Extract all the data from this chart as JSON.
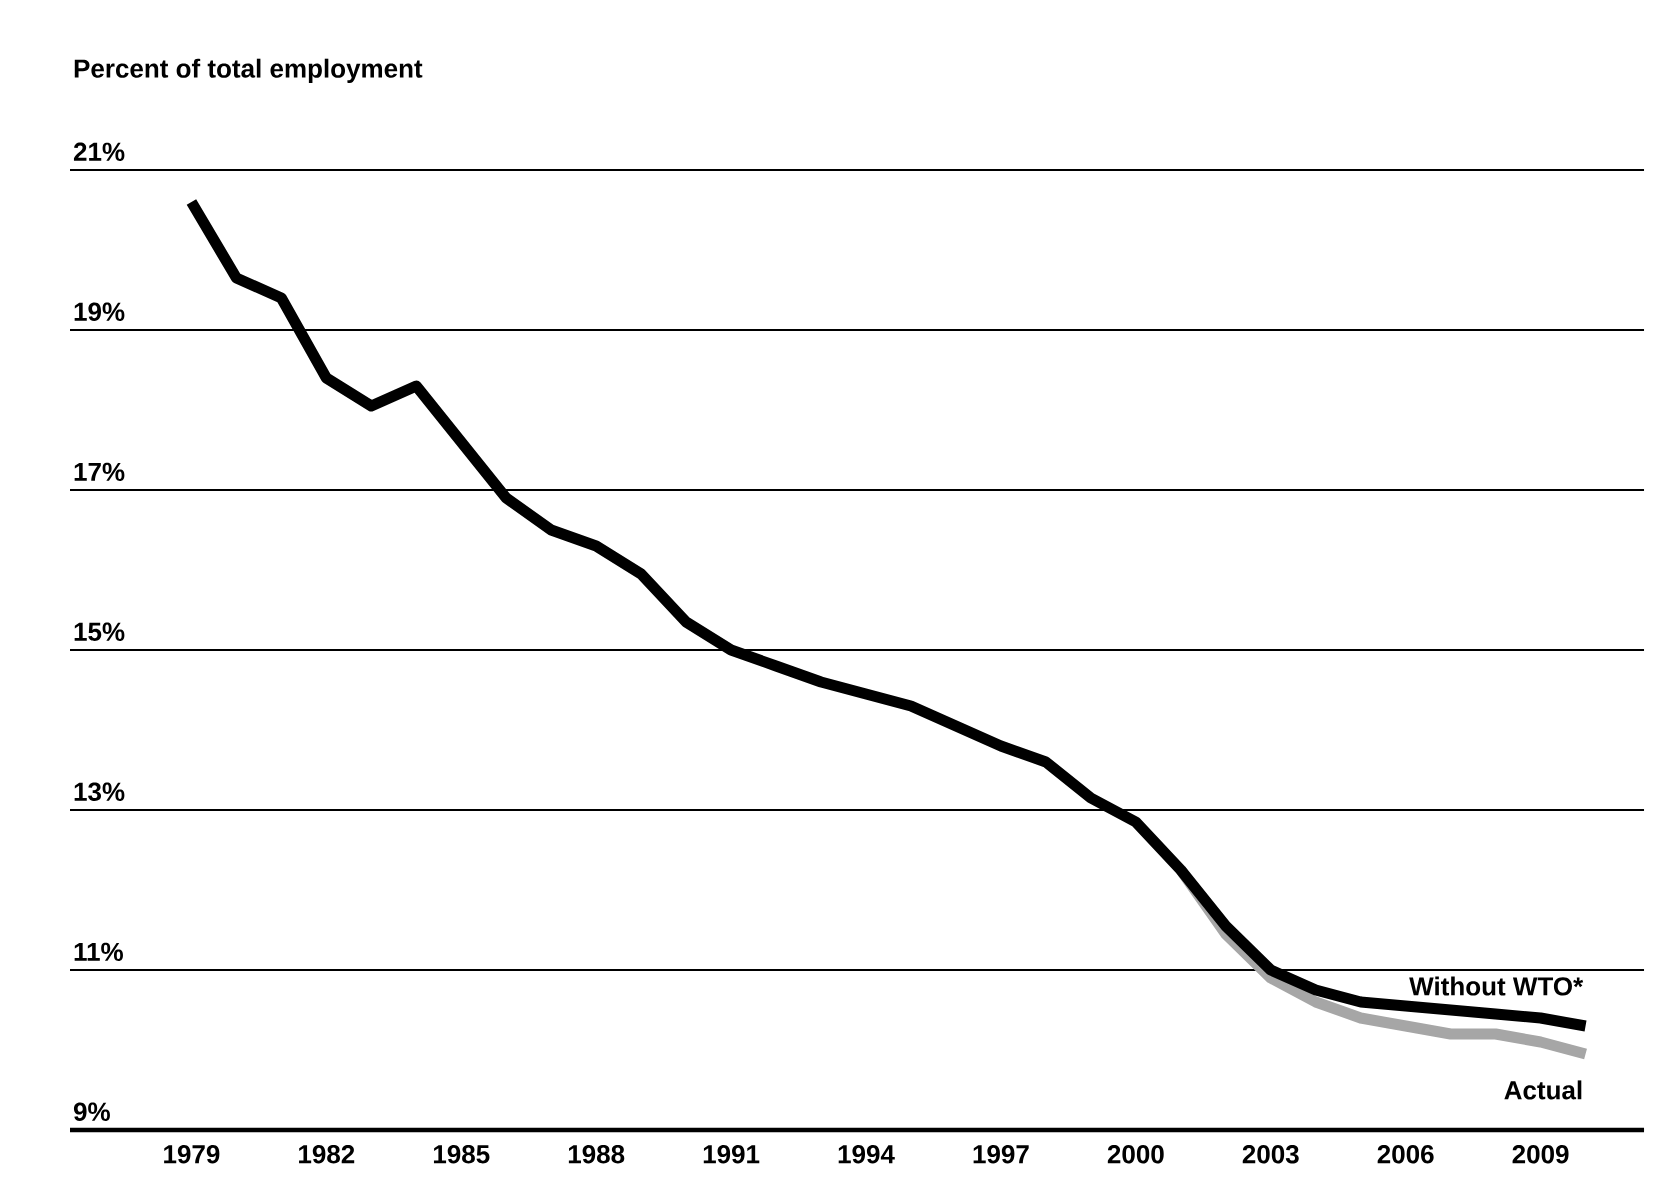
{
  "chart_data": {
    "type": "line",
    "ylabel": "Percent of total employment",
    "x": [
      1979,
      1980,
      1981,
      1982,
      1983,
      1984,
      1985,
      1986,
      1987,
      1988,
      1989,
      1990,
      1991,
      1992,
      1993,
      1994,
      1995,
      1996,
      1997,
      1998,
      1999,
      2000,
      2001,
      2002,
      2003,
      2004,
      2005,
      2006,
      2007,
      2008,
      2009,
      2010
    ],
    "series": [
      {
        "name": "Without WTO*",
        "color": "#000000",
        "values": [
          20.6,
          19.65,
          19.4,
          18.4,
          18.05,
          18.3,
          17.6,
          16.9,
          16.5,
          16.3,
          15.95,
          15.35,
          15.0,
          14.8,
          14.6,
          14.45,
          14.3,
          14.05,
          13.8,
          13.6,
          13.15,
          12.85,
          12.25,
          11.55,
          11.0,
          10.75,
          10.6,
          10.55,
          10.5,
          10.45,
          10.4,
          10.3
        ]
      },
      {
        "name": "Actual",
        "color": "#a6a6a6",
        "values": [
          null,
          null,
          null,
          null,
          null,
          null,
          null,
          null,
          null,
          null,
          null,
          null,
          null,
          null,
          null,
          null,
          null,
          null,
          null,
          null,
          null,
          null,
          12.25,
          11.45,
          10.9,
          10.6,
          10.4,
          10.3,
          10.2,
          10.2,
          10.1,
          9.95
        ]
      }
    ],
    "xlim": [
      1976.3,
      2011.3
    ],
    "xticks": [
      1979,
      1982,
      1985,
      1988,
      1991,
      1994,
      1997,
      2000,
      2003,
      2006,
      2009
    ],
    "ylim": [
      9,
      21
    ],
    "yticks": [
      {
        "value": 9,
        "label": "9%"
      },
      {
        "value": 11,
        "label": "11%"
      },
      {
        "value": 13,
        "label": "13%"
      },
      {
        "value": 15,
        "label": "15%"
      },
      {
        "value": 17,
        "label": "17%"
      },
      {
        "value": 19,
        "label": "19%"
      },
      {
        "value": 21,
        "label": "21%"
      }
    ],
    "grid": "y"
  }
}
